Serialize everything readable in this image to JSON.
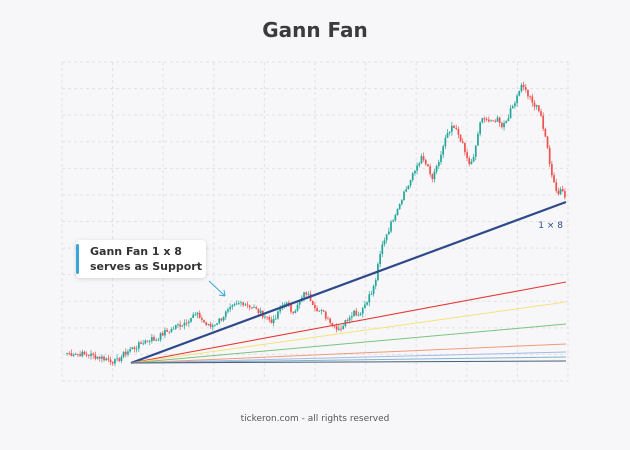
{
  "title": "Gann Fan",
  "footer": "tickeron.com - all rights reserved",
  "annotation": {
    "line1": "Gann Fan 1 x 8",
    "line2": "serves as Support"
  },
  "fan_label": "1 × 8",
  "colors": {
    "up": "#26a69a",
    "down": "#ef5350",
    "main_fan_line": "#2f4a8a",
    "callout_accent": "#3aa6d6"
  },
  "chart_data": {
    "type": "candlestick",
    "grid": true,
    "price_walk": [
      5,
      4.5,
      4.8,
      4.2,
      4.6,
      3.9,
      4.1,
      3.6,
      3.2,
      2.8,
      2.4,
      1.8,
      1.2,
      0.6,
      0,
      2,
      4,
      5.5,
      7,
      7.8,
      8.5,
      10,
      11.5,
      12,
      13,
      12,
      13.5,
      15,
      16.5,
      17,
      18,
      19.5,
      20.5,
      21,
      22.5,
      24,
      25.5,
      25.8,
      24.5,
      22,
      20,
      19.5,
      21,
      22.5,
      24,
      26.5,
      28,
      29.5,
      31,
      32,
      33,
      32,
      31,
      30,
      28.5,
      27,
      26,
      24.5,
      23,
      22,
      26,
      30,
      33,
      31,
      28,
      29,
      31.5,
      35,
      38.5,
      36,
      33,
      30,
      28,
      27,
      24.5,
      23,
      20,
      19,
      18.5,
      21,
      24,
      26.5,
      28,
      26,
      28.5,
      32,
      36,
      38,
      45,
      56,
      65,
      70,
      74,
      79,
      84,
      88,
      93,
      96,
      100,
      104,
      109,
      112,
      110,
      106,
      100,
      104,
      110,
      116,
      123,
      126,
      129,
      127,
      124,
      118,
      112,
      108,
      112,
      124,
      132,
      135,
      133,
      131,
      133,
      134,
      130,
      132,
      136,
      140,
      145,
      150,
      153,
      148,
      145,
      141,
      140,
      138,
      126,
      118,
      106,
      98,
      92,
      96,
      92
    ],
    "fan_lines": [
      {
        "name": "1 × 8",
        "color": "#2f4a8a",
        "width": 2.2
      },
      {
        "color": "#e53935",
        "width": 1.1
      },
      {
        "color": "#f5e27a",
        "width": 1.0
      },
      {
        "color": "#7ac27f",
        "width": 1.0
      },
      {
        "color": "#ef9a7a",
        "width": 1.0
      },
      {
        "color": "#a5b8e6",
        "width": 1.0
      },
      {
        "color": "#7fb4c9",
        "width": 1.0
      },
      {
        "color": "#4a5d7a",
        "width": 1.0
      }
    ]
  }
}
